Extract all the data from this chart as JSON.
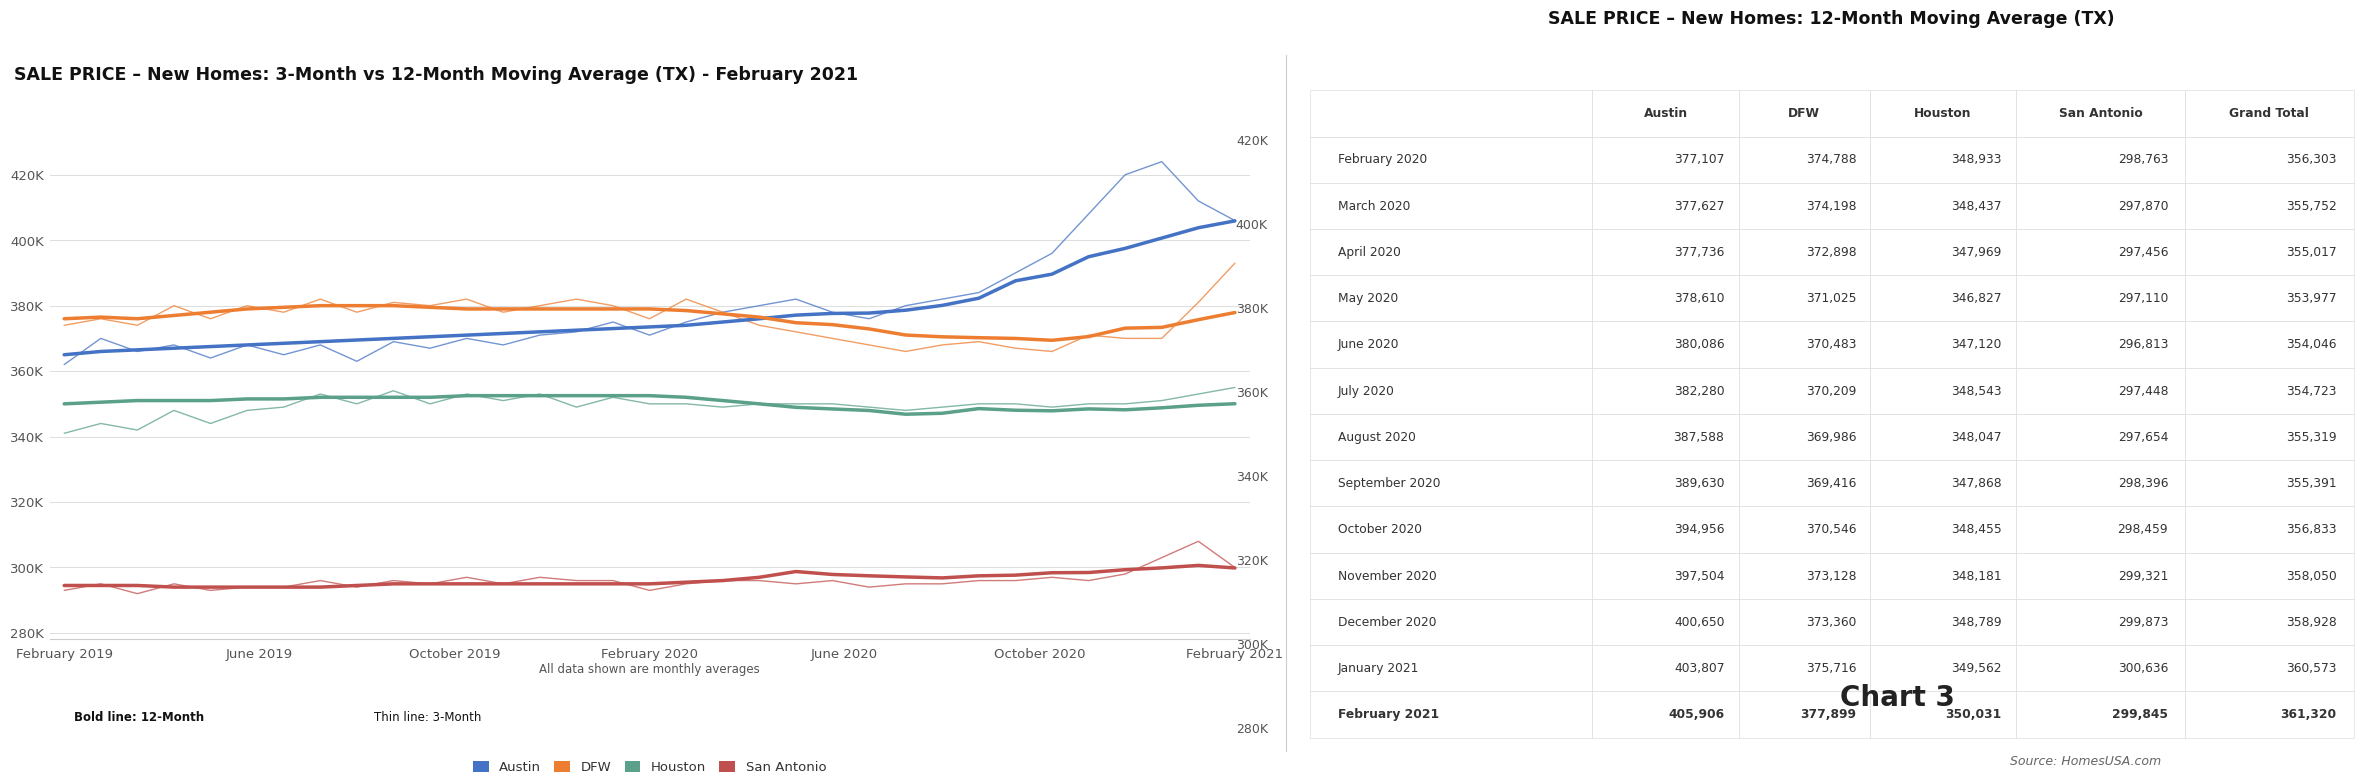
{
  "chart_title": "SALE PRICE – New Homes: 3-Month vs 12-Month Moving Average (TX) - February 2021",
  "table_title": "SALE PRICE – New Homes: 12-Month Moving Average (TX)",
  "chart3_label": "Chart 3",
  "source_label": "Source: HomesUSA.com",
  "legend_note": "All data shown are monthly averages",
  "legend_bold": "Bold line: 12-Month",
  "legend_thin": "Thin line: 3-Month",
  "austin_color": "#4472C4",
  "dfw_color": "#ED7D31",
  "houston_color": "#5BA08A",
  "san_antonio_color": "#C0504D",
  "ylim": [
    278000,
    432000
  ],
  "yticks": [
    280000,
    300000,
    320000,
    340000,
    360000,
    380000,
    400000,
    420000
  ],
  "months_12ma": {
    "Austin": [
      365000,
      366000,
      366500,
      367000,
      367500,
      368000,
      368500,
      369000,
      369500,
      370000,
      370500,
      371000,
      371500,
      372000,
      372500,
      373000,
      373500,
      374000,
      375000,
      376000,
      377107,
      377627,
      377736,
      378610,
      380086,
      382280,
      387588,
      389630,
      394956,
      397504,
      400650,
      403807,
      405906
    ],
    "DFW": [
      376000,
      376500,
      376000,
      377000,
      378000,
      379000,
      379500,
      380000,
      380000,
      380000,
      379500,
      379000,
      379000,
      379000,
      379000,
      379000,
      379000,
      378500,
      377500,
      376500,
      374788,
      374198,
      372898,
      371025,
      370483,
      370209,
      369986,
      369416,
      370546,
      373128,
      373360,
      375716,
      377899
    ],
    "Houston": [
      350000,
      350500,
      351000,
      351000,
      351000,
      351500,
      351500,
      352000,
      352000,
      352000,
      352000,
      352500,
      352500,
      352500,
      352500,
      352500,
      352500,
      352000,
      351000,
      350000,
      348933,
      348437,
      347969,
      346827,
      347120,
      348543,
      348047,
      347868,
      348455,
      348181,
      348789,
      349562,
      350031
    ],
    "San Antonio": [
      294500,
      294500,
      294500,
      294000,
      294000,
      294000,
      294000,
      294000,
      294500,
      295000,
      295000,
      295000,
      295000,
      295000,
      295000,
      295000,
      295000,
      295500,
      296000,
      297000,
      298763,
      297870,
      297456,
      297110,
      296813,
      297448,
      297654,
      298396,
      298459,
      299321,
      299873,
      300636,
      299845
    ]
  },
  "months_3ma": {
    "Austin": [
      362000,
      370000,
      366000,
      368000,
      364000,
      368000,
      365000,
      368000,
      363000,
      369000,
      367000,
      370000,
      368000,
      371000,
      372000,
      375000,
      371000,
      375000,
      378000,
      380000,
      382000,
      378000,
      376000,
      380000,
      382000,
      384000,
      390000,
      396000,
      408000,
      420000,
      424000,
      412000,
      406000
    ],
    "DFW": [
      374000,
      376000,
      374000,
      380000,
      376000,
      380000,
      378000,
      382000,
      378000,
      381000,
      380000,
      382000,
      378000,
      380000,
      382000,
      380000,
      376000,
      382000,
      378000,
      374000,
      372000,
      370000,
      368000,
      366000,
      368000,
      369000,
      367000,
      366000,
      371000,
      370000,
      370000,
      381000,
      393000
    ],
    "Houston": [
      341000,
      344000,
      342000,
      348000,
      344000,
      348000,
      349000,
      353000,
      350000,
      354000,
      350000,
      353000,
      351000,
      353000,
      349000,
      352000,
      350000,
      350000,
      349000,
      350000,
      350000,
      350000,
      349000,
      348000,
      349000,
      350000,
      350000,
      349000,
      350000,
      350000,
      351000,
      353000,
      355000
    ],
    "San Antonio": [
      293000,
      295000,
      292000,
      295000,
      293000,
      294000,
      294000,
      296000,
      294000,
      296000,
      295000,
      297000,
      295000,
      297000,
      296000,
      296000,
      293000,
      295000,
      296000,
      296000,
      295000,
      296000,
      294000,
      295000,
      295000,
      296000,
      296000,
      297000,
      296000,
      298000,
      303000,
      308000,
      300000
    ]
  },
  "x_tick_labels": [
    "February 2019",
    "June 2019",
    "October 2019",
    "February 2020",
    "June 2020",
    "October 2020",
    "February 2021"
  ],
  "x_tick_positions": [
    0,
    4,
    8,
    12,
    16,
    20,
    24
  ],
  "table_rows": [
    [
      "February 2020",
      "377,107",
      "374,788",
      "348,933",
      "298,763",
      "356,303"
    ],
    [
      "March 2020",
      "377,627",
      "374,198",
      "348,437",
      "297,870",
      "355,752"
    ],
    [
      "April 2020",
      "377,736",
      "372,898",
      "347,969",
      "297,456",
      "355,017"
    ],
    [
      "May 2020",
      "378,610",
      "371,025",
      "346,827",
      "297,110",
      "353,977"
    ],
    [
      "June 2020",
      "380,086",
      "370,483",
      "347,120",
      "296,813",
      "354,046"
    ],
    [
      "July 2020",
      "382,280",
      "370,209",
      "348,543",
      "297,448",
      "354,723"
    ],
    [
      "August 2020",
      "387,588",
      "369,986",
      "348,047",
      "297,654",
      "355,319"
    ],
    [
      "September 2020",
      "389,630",
      "369,416",
      "347,868",
      "298,396",
      "355,391"
    ],
    [
      "October 2020",
      "394,956",
      "370,546",
      "348,455",
      "298,459",
      "356,833"
    ],
    [
      "November 2020",
      "397,504",
      "373,128",
      "348,181",
      "299,321",
      "358,050"
    ],
    [
      "December 2020",
      "400,650",
      "373,360",
      "348,789",
      "299,873",
      "358,928"
    ],
    [
      "January 2021",
      "403,807",
      "375,716",
      "349,562",
      "300,636",
      "360,573"
    ],
    [
      "February 2021",
      "405,906",
      "377,899",
      "350,031",
      "299,845",
      "361,320"
    ]
  ],
  "table_headers": [
    "",
    "Austin",
    "DFW",
    "Houston",
    "San Antonio",
    "Grand Total"
  ],
  "background_color": "#FFFFFF"
}
